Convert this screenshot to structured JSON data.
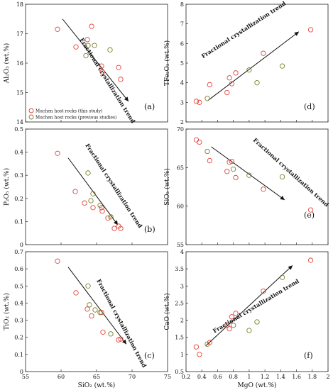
{
  "colors": {
    "this_study": "#e0453a",
    "previous": "#7d7d2a",
    "trend": "#111111"
  },
  "legend": {
    "this_study": "Muchen host rocks (this study)",
    "previous": "Muchen host rocks (previous studies)"
  },
  "chart_data": [
    {
      "id": "a",
      "type": "scatter",
      "tag": "(a)",
      "xlabel": "",
      "ylabel": "Al₂O₃ (wt.%)",
      "xlim": [
        55,
        75
      ],
      "ylim": [
        14,
        18
      ],
      "xticks": [],
      "yticks": [
        14,
        15,
        16,
        17,
        18
      ],
      "trend_label": "Fractional crystallization trend",
      "trend": {
        "x": [
          60.2,
          69.5
        ],
        "y": [
          17.5,
          14.7
        ]
      },
      "series": [
        {
          "name": "Muchen host rocks (this study)",
          "x": [
            59.5,
            62.1,
            63.7,
            64.3,
            65.7,
            65.8,
            68.1,
            68.4
          ],
          "y": [
            17.15,
            16.55,
            16.8,
            17.25,
            15.9,
            15.7,
            15.85,
            15.45
          ]
        },
        {
          "name": "Muchen host rocks (previous studies)",
          "x": [
            63.8,
            64.7,
            66.9,
            63.5
          ],
          "y": [
            16.6,
            16.6,
            16.45,
            16.25
          ]
        }
      ]
    },
    {
      "id": "d",
      "type": "scatter",
      "tag": "(d)",
      "xlabel": "",
      "ylabel": "TFe₂O₃ (wt.%)",
      "xlim": [
        0.2,
        2.0
      ],
      "ylim": [
        2,
        8
      ],
      "xticks": [],
      "yticks": [
        2,
        3,
        4,
        5,
        6,
        7,
        8
      ],
      "trend_label": "Fractional crystallization trend",
      "trend": {
        "x": [
          0.48,
          1.63
        ],
        "y": [
          3.1,
          6.6
        ]
      },
      "series": [
        {
          "name": "Muchen host rocks (this study)",
          "x": [
            0.33,
            0.37,
            0.5,
            0.72,
            0.75,
            0.78,
            0.83,
            1.18,
            1.78
          ],
          "y": [
            3.05,
            3.0,
            3.9,
            3.5,
            4.25,
            3.95,
            4.5,
            5.5,
            6.7
          ]
        },
        {
          "name": "Muchen host rocks (previous studies)",
          "x": [
            0.47,
            1.0,
            1.1,
            1.42
          ],
          "y": [
            3.2,
            4.65,
            4.0,
            4.85
          ]
        }
      ]
    },
    {
      "id": "b",
      "type": "scatter",
      "tag": "(b)",
      "xlabel": "",
      "ylabel": "P₂O₅ (wt.%)",
      "xlim": [
        55,
        75
      ],
      "ylim": [
        0.0,
        0.5
      ],
      "xticks": [],
      "yticks": [
        0.0,
        0.1,
        0.2,
        0.3,
        0.4,
        0.5
      ],
      "trend_label": "Fractional crystallization trend",
      "trend": {
        "x": [
          61.0,
          68.0
        ],
        "y": [
          0.375,
          0.085
        ]
      },
      "series": [
        {
          "name": "Muchen host rocks (this study)",
          "x": [
            59.5,
            62.0,
            63.3,
            64.5,
            65.7,
            65.8,
            66.6,
            67.5,
            68.1,
            68.4
          ],
          "y": [
            0.395,
            0.23,
            0.18,
            0.16,
            0.16,
            0.145,
            0.115,
            0.07,
            0.08,
            0.07
          ]
        },
        {
          "name": "Muchen host rocks (previous studies)",
          "x": [
            63.8,
            64.5,
            64.2,
            65.5,
            67.0
          ],
          "y": [
            0.31,
            0.22,
            0.19,
            0.17,
            0.12
          ]
        }
      ]
    },
    {
      "id": "e",
      "type": "scatter",
      "tag": "(e)",
      "xlabel": "",
      "ylabel": "SiO₂ (wt.%)",
      "xlim": [
        0.2,
        2.0
      ],
      "ylim": [
        55,
        70
      ],
      "xticks": [],
      "yticks": [
        55,
        60,
        65,
        70
      ],
      "trend_label": "Fractional crystallization trend",
      "trend": {
        "x": [
          0.52,
          1.45
        ],
        "y": [
          67.7,
          60.8
        ]
      },
      "series": [
        {
          "name": "Muchen host rocks (this study)",
          "x": [
            0.33,
            0.37,
            0.5,
            0.72,
            0.75,
            0.78,
            0.83,
            1.18,
            1.78
          ],
          "y": [
            68.6,
            68.3,
            65.9,
            64.5,
            65.7,
            65.8,
            63.7,
            62.2,
            59.5
          ]
        },
        {
          "name": "Muchen host rocks (previous studies)",
          "x": [
            0.47,
            0.8,
            1.0,
            1.42
          ],
          "y": [
            67.1,
            64.8,
            64.0,
            63.8
          ]
        }
      ]
    },
    {
      "id": "c",
      "type": "scatter",
      "tag": "(c)",
      "xlabel": "SiO₂ (wt.%)",
      "ylabel": "TiO₂ (wt.%)",
      "xlim": [
        55,
        75
      ],
      "ylim": [
        0.0,
        0.7
      ],
      "xticks": [
        55,
        60,
        65,
        70,
        75
      ],
      "yticks": [
        0.0,
        0.1,
        0.2,
        0.3,
        0.4,
        0.5,
        0.6,
        0.7
      ],
      "trend_label": "Fractional crystallization trend",
      "trend": {
        "x": [
          61.0,
          69.2
        ],
        "y": [
          0.61,
          0.16
        ]
      },
      "series": [
        {
          "name": "Muchen host rocks (this study)",
          "x": [
            59.5,
            62.1,
            63.7,
            64.3,
            65.7,
            65.9,
            68.1,
            68.4
          ],
          "y": [
            0.645,
            0.46,
            0.365,
            0.325,
            0.345,
            0.23,
            0.185,
            0.19
          ]
        },
        {
          "name": "Muchen host rocks (previous studies)",
          "x": [
            63.8,
            64.0,
            64.8,
            65.5,
            67.0
          ],
          "y": [
            0.5,
            0.39,
            0.36,
            0.345,
            0.22
          ]
        }
      ]
    },
    {
      "id": "f",
      "type": "scatter",
      "tag": "(f)",
      "xlabel": "MgO (wt.%)",
      "ylabel": "CaO (wt.%)",
      "xlim": [
        0.2,
        2.0
      ],
      "ylim": [
        0.5,
        4.0
      ],
      "xticks": [
        0.2,
        0.4,
        0.6,
        0.8,
        1.0,
        1.2,
        1.4,
        1.6,
        1.8,
        2.0
      ],
      "yticks": [
        0.5,
        1.0,
        1.5,
        2.0,
        2.5,
        3.0,
        3.5,
        4.0
      ],
      "trend_label": "Fractional crystallization trend",
      "trend": {
        "x": [
          0.45,
          1.55
        ],
        "y": [
          1.25,
          3.6
        ]
      },
      "series": [
        {
          "name": "Muchen host rocks (this study)",
          "x": [
            0.33,
            0.37,
            0.5,
            0.72,
            0.75,
            0.78,
            0.83,
            1.18,
            1.78
          ],
          "y": [
            1.22,
            1.0,
            1.35,
            1.85,
            1.75,
            2.1,
            2.2,
            2.85,
            3.75
          ]
        },
        {
          "name": "Muchen host rocks (previous studies)",
          "x": [
            0.47,
            0.8,
            1.0,
            1.1,
            1.42
          ],
          "y": [
            1.3,
            1.85,
            1.7,
            1.95,
            3.25
          ]
        }
      ]
    }
  ]
}
